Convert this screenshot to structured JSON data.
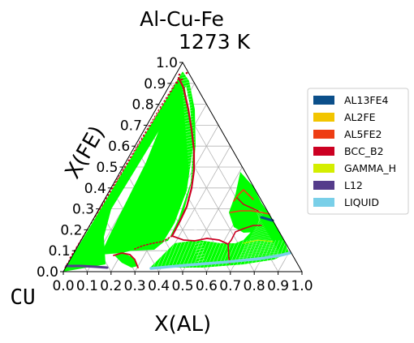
{
  "chart_data": {
    "type": "ternary",
    "title": "Al-Cu-Fe",
    "subtitle": "1273  K",
    "corner_label": "CU",
    "xlabel": "X(AL)",
    "ylabel": "X(FE)",
    "x_ticks": [
      "0.0",
      "0.1",
      "0.2",
      "0.3",
      "0.4",
      "0.5",
      "0.6",
      "0.7",
      "0.8",
      "0.9",
      "1.0"
    ],
    "y_ticks": [
      "0.0",
      "0.1",
      "0.2",
      "0.3",
      "0.4",
      "0.5",
      "0.6",
      "0.7",
      "0.8",
      "0.9",
      "1.0"
    ],
    "xlim": [
      0,
      1
    ],
    "ylim": [
      0,
      1
    ],
    "grid": true,
    "legend_position": "right",
    "legend": [
      {
        "name": "AL13FE4",
        "color": "#0b4f8a"
      },
      {
        "name": "AL2FE",
        "color": "#f2c500"
      },
      {
        "name": "AL5FE2",
        "color": "#ee3d14"
      },
      {
        "name": "BCC_B2",
        "color": "#cc0022"
      },
      {
        "name": "GAMMA_H",
        "color": "#d4ee00"
      },
      {
        "name": "L12",
        "color": "#553c8b"
      },
      {
        "name": "LIQUID",
        "color": "#79cfe8"
      }
    ],
    "tie_line_color": "#00ff00",
    "phase_boundaries": [
      {
        "phase": "BCC_B2",
        "points": [
          [
            0.49,
            0.83
          ],
          [
            0.5,
            0.74
          ],
          [
            0.51,
            0.65
          ],
          [
            0.51,
            0.56
          ],
          [
            0.5,
            0.49
          ]
        ]
      },
      {
        "phase": "BCC_B2",
        "points": [
          [
            0.24,
            0.08
          ],
          [
            0.28,
            0.08
          ],
          [
            0.3,
            0.02
          ]
        ]
      },
      {
        "phase": "BCC_B2",
        "points": [
          [
            0.47,
            0.12
          ],
          [
            0.51,
            0.16
          ],
          [
            0.58,
            0.15
          ],
          [
            0.68,
            0.14
          ]
        ]
      },
      {
        "phase": "BCC_B2",
        "points": [
          [
            0.7,
            0.1
          ],
          [
            0.71,
            0.04
          ],
          [
            0.71,
            0.01
          ]
        ]
      },
      {
        "phase": "BCC_B2",
        "points": [
          [
            0.03,
            0.03
          ],
          [
            0.3,
            0.92
          ]
        ]
      },
      {
        "phase": "L12",
        "points": [
          [
            0.02,
            0.02
          ],
          [
            0.17,
            0.02
          ]
        ]
      },
      {
        "phase": "LIQUID",
        "points": [
          [
            0.37,
            0.0
          ],
          [
            0.95,
            0.05
          ]
        ]
      },
      {
        "phase": "AL13FE4",
        "points": [
          [
            0.74,
            0.25
          ],
          [
            0.77,
            0.23
          ]
        ]
      },
      {
        "phase": "AL5FE2",
        "points": [
          [
            0.7,
            0.28
          ],
          [
            0.73,
            0.25
          ]
        ]
      }
    ]
  }
}
